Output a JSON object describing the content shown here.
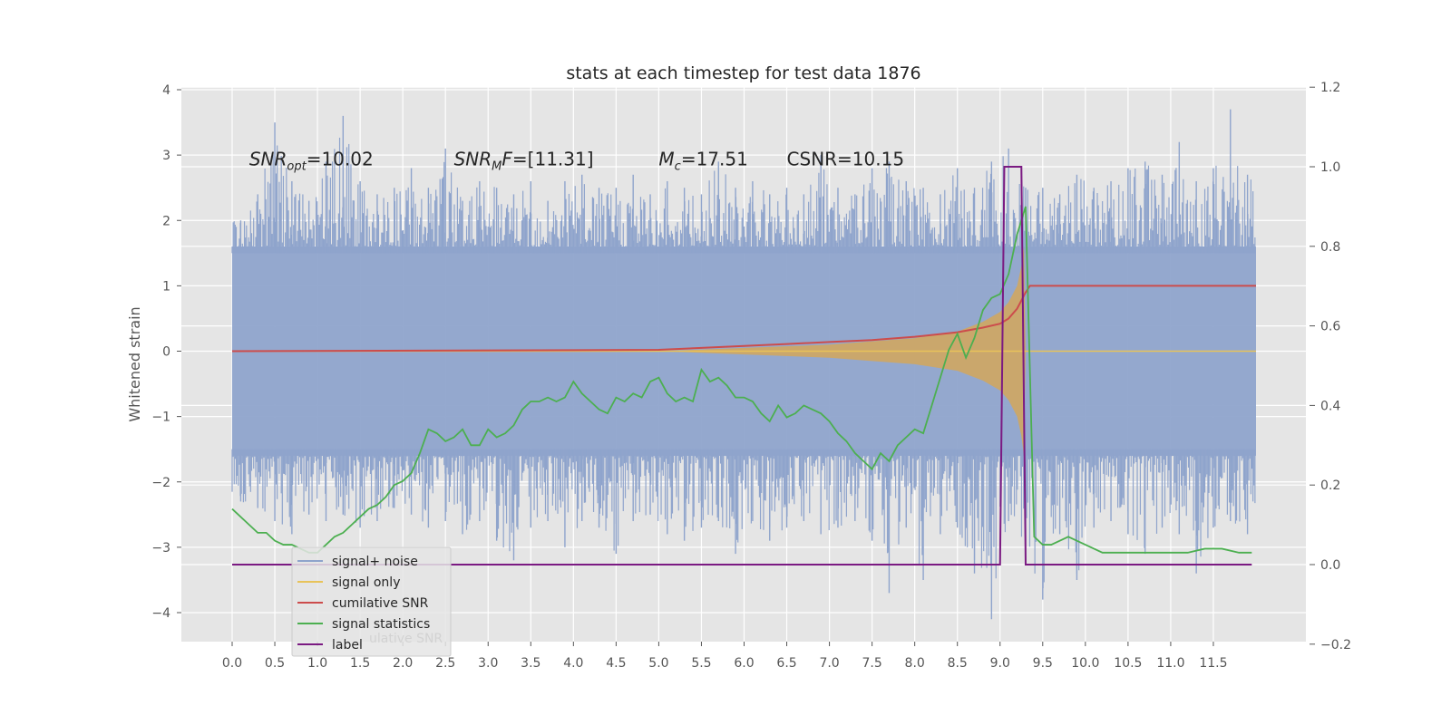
{
  "chart_data": {
    "type": "line",
    "title": "stats at each timestep for test data 1876",
    "ylabel": "Whitened strain",
    "xlim": [
      -0.6,
      12.5
    ],
    "ylim": [
      -4.5,
      4.0
    ],
    "y2lim": [
      -0.2,
      1.2
    ],
    "grid": true,
    "legend_position": "lower-left",
    "x_ticks": [
      0.0,
      0.5,
      1.0,
      1.5,
      2.0,
      2.5,
      3.0,
      3.5,
      4.0,
      4.5,
      5.0,
      5.5,
      6.0,
      6.5,
      7.0,
      7.5,
      8.0,
      8.5,
      9.0,
      9.5,
      10.0,
      10.5,
      11.0,
      11.5
    ],
    "x_tick_labels": [
      "0.0",
      "0.5",
      "1.0",
      "1.5",
      "2.0",
      "2.5",
      "3.0",
      "3.5",
      "4.0",
      "4.5",
      "5.0",
      "5.5",
      "6.0",
      "6.5",
      "7.0",
      "7.5",
      "8.0",
      "8.5",
      "9.0",
      "9.5",
      "10.0",
      "10.5",
      "11.0",
      "11.5"
    ],
    "y_ticks": [
      4,
      3,
      2,
      1,
      0,
      -1,
      -2,
      -3,
      -4
    ],
    "y_tick_labels": [
      "4",
      "3",
      "2",
      "1",
      "0",
      "−1",
      "−2",
      "−3",
      "−4"
    ],
    "y2_ticks": [
      1.2,
      1.0,
      0.8,
      0.6,
      0.4,
      0.2,
      0.0,
      -0.2
    ],
    "y2_tick_labels": [
      "1.2",
      "1.0",
      "0.8",
      "0.6",
      "0.4",
      "0.2",
      "0.0",
      "−0.2"
    ],
    "annotations": [
      {
        "text": "SNR_opt=10.02",
        "x": 0.2,
        "y": 2.95
      },
      {
        "text": "SNR_MF=[11.31]",
        "x": 2.6,
        "y": 2.95
      },
      {
        "text": "M_c=17.51",
        "x": 5.0,
        "y": 2.95
      },
      {
        "text": "CSNR=10.15",
        "x": 6.5,
        "y": 2.95
      }
    ],
    "series": [
      {
        "name": "signal+ noise",
        "axis": "left",
        "color": "#8fa4cc",
        "style": "noise-band",
        "x_range": [
          0.0,
          12.0
        ],
        "center": 0.0,
        "band": [
          -1.6,
          1.6
        ],
        "peaks_up": [
          [
            0.1,
            2.0
          ],
          [
            0.3,
            2.4
          ],
          [
            0.5,
            3.5
          ],
          [
            0.7,
            2.6
          ],
          [
            0.9,
            2.3
          ],
          [
            1.1,
            2.9
          ],
          [
            1.3,
            3.6
          ],
          [
            1.5,
            2.6
          ],
          [
            1.7,
            2.4
          ],
          [
            1.9,
            2.5
          ],
          [
            2.1,
            2.8
          ],
          [
            2.3,
            2.5
          ],
          [
            2.5,
            3.1
          ],
          [
            2.7,
            2.3
          ],
          [
            2.9,
            2.6
          ],
          [
            3.1,
            2.5
          ],
          [
            3.3,
            2.4
          ],
          [
            3.5,
            2.6
          ],
          [
            3.7,
            2.3
          ],
          [
            3.9,
            2.6
          ],
          [
            4.1,
            2.7
          ],
          [
            4.3,
            2.5
          ],
          [
            4.5,
            2.5
          ],
          [
            4.7,
            2.7
          ],
          [
            4.9,
            2.4
          ],
          [
            5.1,
            2.6
          ],
          [
            5.3,
            2.5
          ],
          [
            5.5,
            2.4
          ],
          [
            5.7,
            2.9
          ],
          [
            5.9,
            2.5
          ],
          [
            6.1,
            2.6
          ],
          [
            6.3,
            2.4
          ],
          [
            6.5,
            2.5
          ],
          [
            6.7,
            2.4
          ],
          [
            6.9,
            3.0
          ],
          [
            7.1,
            2.5
          ],
          [
            7.3,
            2.4
          ],
          [
            7.5,
            2.8
          ],
          [
            7.7,
            2.9
          ],
          [
            7.9,
            2.6
          ],
          [
            8.1,
            2.5
          ],
          [
            8.3,
            2.4
          ],
          [
            8.5,
            2.8
          ],
          [
            8.7,
            2.5
          ],
          [
            8.9,
            2.9
          ],
          [
            9.1,
            3.1
          ],
          [
            9.3,
            2.5
          ],
          [
            9.5,
            2.5
          ],
          [
            9.7,
            2.4
          ],
          [
            9.9,
            2.7
          ],
          [
            10.1,
            2.5
          ],
          [
            10.3,
            2.6
          ],
          [
            10.5,
            2.8
          ],
          [
            10.7,
            2.9
          ],
          [
            10.9,
            2.7
          ],
          [
            11.1,
            3.2
          ],
          [
            11.3,
            2.6
          ],
          [
            11.5,
            2.8
          ],
          [
            11.7,
            3.7
          ],
          [
            11.9,
            2.7
          ]
        ],
        "peaks_down": [
          [
            0.1,
            -2.3
          ],
          [
            0.3,
            -2.4
          ],
          [
            0.5,
            -2.6
          ],
          [
            0.7,
            -2.8
          ],
          [
            0.9,
            -2.5
          ],
          [
            1.1,
            -2.6
          ],
          [
            1.3,
            -2.5
          ],
          [
            1.5,
            -2.7
          ],
          [
            1.7,
            -2.6
          ],
          [
            1.9,
            -2.4
          ],
          [
            2.1,
            -2.5
          ],
          [
            2.3,
            -2.7
          ],
          [
            2.5,
            -2.6
          ],
          [
            2.7,
            -2.8
          ],
          [
            2.9,
            -2.6
          ],
          [
            3.1,
            -2.9
          ],
          [
            3.3,
            -3.2
          ],
          [
            3.5,
            -2.7
          ],
          [
            3.7,
            -2.6
          ],
          [
            3.9,
            -3.0
          ],
          [
            4.1,
            -2.6
          ],
          [
            4.3,
            -2.7
          ],
          [
            4.5,
            -3.1
          ],
          [
            4.7,
            -2.6
          ],
          [
            4.9,
            -2.5
          ],
          [
            5.1,
            -2.8
          ],
          [
            5.3,
            -2.9
          ],
          [
            5.5,
            -2.7
          ],
          [
            5.7,
            -2.6
          ],
          [
            5.9,
            -3.1
          ],
          [
            6.1,
            -2.6
          ],
          [
            6.3,
            -2.9
          ],
          [
            6.5,
            -2.7
          ],
          [
            6.7,
            -2.6
          ],
          [
            6.9,
            -2.8
          ],
          [
            7.1,
            -2.7
          ],
          [
            7.3,
            -2.6
          ],
          [
            7.5,
            -2.9
          ],
          [
            7.7,
            -3.7
          ],
          [
            7.9,
            -2.7
          ],
          [
            8.1,
            -3.5
          ],
          [
            8.3,
            -2.8
          ],
          [
            8.5,
            -2.7
          ],
          [
            8.7,
            -3.4
          ],
          [
            8.9,
            -4.1
          ],
          [
            9.1,
            -2.6
          ],
          [
            9.3,
            -3.2
          ],
          [
            9.5,
            -3.8
          ],
          [
            9.7,
            -2.8
          ],
          [
            9.9,
            -3.5
          ],
          [
            10.1,
            -2.7
          ],
          [
            10.3,
            -2.6
          ],
          [
            10.5,
            -2.8
          ],
          [
            10.7,
            -3.1
          ],
          [
            10.9,
            -2.7
          ],
          [
            11.1,
            -2.8
          ],
          [
            11.3,
            -3.4
          ],
          [
            11.5,
            -2.7
          ],
          [
            11.7,
            -2.6
          ],
          [
            11.9,
            -2.8
          ]
        ]
      },
      {
        "name": "signal only",
        "axis": "left",
        "color": "#e8c35a",
        "style": "chirp",
        "x": [
          0.0,
          5.0,
          6.0,
          7.0,
          7.5,
          8.0,
          8.5,
          8.8,
          9.0,
          9.1,
          9.2,
          9.25,
          9.28,
          9.3,
          12.0
        ],
        "envelope": [
          0.0,
          0.0,
          0.05,
          0.1,
          0.15,
          0.2,
          0.3,
          0.45,
          0.6,
          0.75,
          1.0,
          1.3,
          1.6,
          0.0,
          0.0
        ]
      },
      {
        "name": "cumilative SNR",
        "axis": "left",
        "color": "#cc4c4c",
        "x": [
          0.0,
          5.0,
          5.5,
          6.0,
          6.5,
          7.0,
          7.5,
          8.0,
          8.5,
          8.8,
          9.0,
          9.1,
          9.2,
          9.3,
          9.35,
          12.0
        ],
        "y": [
          0.0,
          0.02,
          0.05,
          0.08,
          0.11,
          0.14,
          0.17,
          0.22,
          0.29,
          0.36,
          0.42,
          0.5,
          0.65,
          0.9,
          1.0,
          1.0
        ]
      },
      {
        "name": "signal statistics",
        "axis": "right",
        "color": "#4caf50",
        "x": [
          0.0,
          0.2,
          0.3,
          0.4,
          0.5,
          0.6,
          0.7,
          0.8,
          0.9,
          1.0,
          1.1,
          1.2,
          1.3,
          1.4,
          1.5,
          1.6,
          1.7,
          1.8,
          1.9,
          2.0,
          2.1,
          2.2,
          2.3,
          2.4,
          2.5,
          2.6,
          2.7,
          2.8,
          2.9,
          3.0,
          3.1,
          3.2,
          3.3,
          3.4,
          3.5,
          3.6,
          3.7,
          3.8,
          3.9,
          4.0,
          4.1,
          4.2,
          4.3,
          4.4,
          4.5,
          4.6,
          4.7,
          4.8,
          4.9,
          5.0,
          5.1,
          5.2,
          5.3,
          5.4,
          5.5,
          5.6,
          5.7,
          5.8,
          5.9,
          6.0,
          6.1,
          6.2,
          6.3,
          6.4,
          6.5,
          6.6,
          6.7,
          6.8,
          6.9,
          7.0,
          7.1,
          7.2,
          7.3,
          7.4,
          7.5,
          7.6,
          7.7,
          7.8,
          7.9,
          8.0,
          8.1,
          8.2,
          8.3,
          8.4,
          8.5,
          8.6,
          8.7,
          8.8,
          8.9,
          9.0,
          9.1,
          9.2,
          9.3,
          9.4,
          9.5,
          9.6,
          9.7,
          9.8,
          9.9,
          10.0,
          10.2,
          10.4,
          10.6,
          10.8,
          11.0,
          11.2,
          11.4,
          11.6,
          11.8,
          11.95
        ],
        "y": [
          0.14,
          0.1,
          0.08,
          0.08,
          0.06,
          0.05,
          0.05,
          0.04,
          0.03,
          0.03,
          0.05,
          0.07,
          0.08,
          0.1,
          0.12,
          0.14,
          0.15,
          0.17,
          0.2,
          0.21,
          0.23,
          0.28,
          0.34,
          0.33,
          0.31,
          0.32,
          0.34,
          0.3,
          0.3,
          0.34,
          0.32,
          0.33,
          0.35,
          0.39,
          0.41,
          0.41,
          0.42,
          0.41,
          0.42,
          0.46,
          0.43,
          0.41,
          0.39,
          0.38,
          0.42,
          0.41,
          0.43,
          0.42,
          0.46,
          0.47,
          0.43,
          0.41,
          0.42,
          0.41,
          0.49,
          0.46,
          0.47,
          0.45,
          0.42,
          0.42,
          0.41,
          0.38,
          0.36,
          0.4,
          0.37,
          0.38,
          0.4,
          0.39,
          0.38,
          0.36,
          0.33,
          0.31,
          0.28,
          0.26,
          0.24,
          0.28,
          0.26,
          0.3,
          0.32,
          0.34,
          0.33,
          0.4,
          0.47,
          0.54,
          0.58,
          0.52,
          0.57,
          0.64,
          0.67,
          0.68,
          0.73,
          0.83,
          0.9,
          0.07,
          0.05,
          0.05,
          0.06,
          0.07,
          0.06,
          0.05,
          0.03,
          0.03,
          0.03,
          0.03,
          0.03,
          0.03,
          0.04,
          0.04,
          0.03,
          0.03
        ]
      },
      {
        "name": "label",
        "axis": "right",
        "color": "#7b1a82",
        "x": [
          0.0,
          9.0,
          9.05,
          9.25,
          9.3,
          11.95
        ],
        "y": [
          0.0,
          0.0,
          1.0,
          1.0,
          0.0,
          0.0
        ]
      }
    ],
    "legend_entries": [
      "signal+ noise",
      "signal only",
      "cumilative SNR",
      "signal statistics",
      "label"
    ],
    "legend_ghost": "ulative SNR"
  }
}
